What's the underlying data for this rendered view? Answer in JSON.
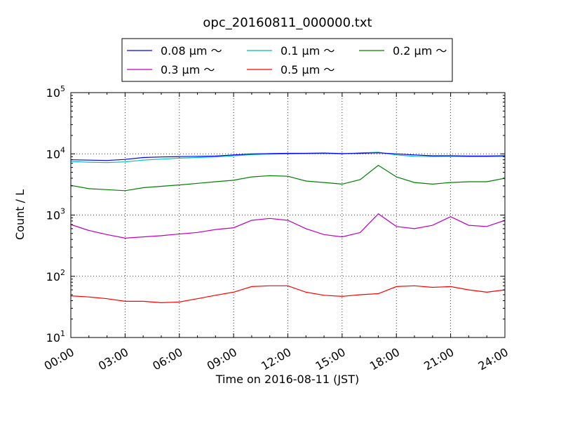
{
  "chart_data": {
    "type": "line",
    "title": "opc_20160811_000000.txt",
    "xlabel": "Time on 2016-08-11 (JST)",
    "ylabel": "Count / L",
    "yscale": "log",
    "xlim": [
      "00:00",
      "24:00"
    ],
    "ylim": [
      10,
      100000
    ],
    "grid": true,
    "legend_position": "top-center",
    "xtick_labels": [
      "00:00",
      "03:00",
      "06:00",
      "09:00",
      "12:00",
      "15:00",
      "18:00",
      "21:00",
      "24:00"
    ],
    "ytick_labels": [
      {
        "base": "10",
        "exp": "1"
      },
      {
        "base": "10",
        "exp": "2"
      },
      {
        "base": "10",
        "exp": "3"
      },
      {
        "base": "10",
        "exp": "4"
      },
      {
        "base": "10",
        "exp": "5"
      }
    ],
    "x": [
      "00:00",
      "01:00",
      "02:00",
      "03:00",
      "04:00",
      "05:00",
      "06:00",
      "07:00",
      "08:00",
      "09:00",
      "10:00",
      "11:00",
      "12:00",
      "13:00",
      "14:00",
      "15:00",
      "16:00",
      "17:00",
      "18:00",
      "19:00",
      "20:00",
      "21:00",
      "22:00",
      "23:00",
      "24:00"
    ],
    "series": [
      {
        "name": "0.08 μm ～",
        "color": "#0000ff",
        "values": [
          8000,
          7900,
          7800,
          8100,
          8700,
          8900,
          9000,
          9100,
          9200,
          9600,
          10000,
          10100,
          10200,
          10200,
          10300,
          10100,
          10200,
          10400,
          10000,
          9600,
          9300,
          9300,
          9200,
          9200,
          9300
        ]
      },
      {
        "name": "0.1 μm ～",
        "color": "#00bfbf",
        "values": [
          7500,
          7300,
          7200,
          7400,
          7900,
          8200,
          8500,
          8700,
          8900,
          9300,
          9700,
          9900,
          10000,
          10100,
          10200,
          10000,
          10400,
          10600,
          9600,
          9100,
          9000,
          9100,
          9000,
          9000,
          9100
        ]
      },
      {
        "name": "0.2 μm ～",
        "color": "#008000",
        "values": [
          3050,
          2700,
          2600,
          2500,
          2800,
          2950,
          3100,
          3300,
          3500,
          3700,
          4200,
          4400,
          4300,
          3600,
          3400,
          3200,
          3800,
          6500,
          4200,
          3400,
          3200,
          3400,
          3500,
          3500,
          4000
        ]
      },
      {
        "name": "0.3 μm ～",
        "color": "#bf00bf",
        "values": [
          700,
          560,
          480,
          420,
          440,
          460,
          490,
          520,
          580,
          620,
          820,
          880,
          820,
          600,
          480,
          440,
          520,
          1050,
          650,
          600,
          680,
          940,
          680,
          650,
          820
        ]
      },
      {
        "name": "0.5 μm ～",
        "color": "#ff0000",
        "values": [
          48,
          46,
          43,
          39,
          39,
          37,
          38,
          43,
          49,
          55,
          68,
          70,
          70,
          55,
          49,
          47,
          50,
          52,
          68,
          70,
          66,
          68,
          60,
          55,
          60
        ]
      }
    ]
  }
}
